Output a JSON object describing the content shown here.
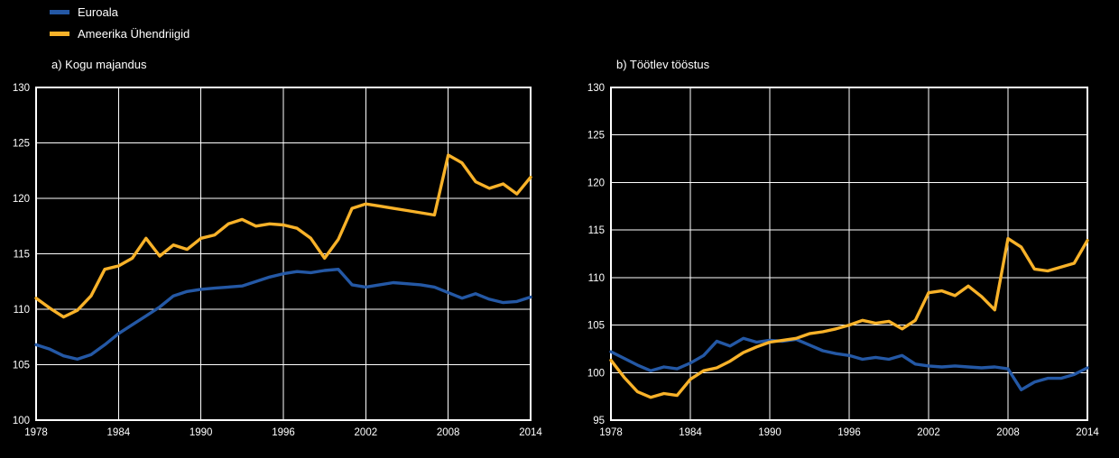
{
  "page": {
    "background": "#000000",
    "text_color": "#ffffff"
  },
  "legend": {
    "items": [
      {
        "label": "Euroala",
        "color": "#2458A5"
      },
      {
        "label": "Ameerika Ühendriigid",
        "color": "#F8B229"
      }
    ]
  },
  "chart_data": [
    {
      "type": "line",
      "title": "a) Kogu majandus",
      "xlabel": "",
      "ylabel": "",
      "grid": true,
      "legend_position": "top-left-above-figure",
      "ylim": [
        100,
        130
      ],
      "ytick_step": 5,
      "xticks": [
        1978,
        1984,
        1990,
        1996,
        2002,
        2008,
        2014
      ],
      "x": [
        1978,
        1979,
        1980,
        1981,
        1982,
        1983,
        1984,
        1985,
        1986,
        1987,
        1988,
        1989,
        1990,
        1991,
        1992,
        1993,
        1994,
        1995,
        1996,
        1997,
        1998,
        1999,
        2000,
        2001,
        2002,
        2003,
        2004,
        2005,
        2006,
        2007,
        2008,
        2009,
        2010,
        2011,
        2012,
        2013,
        2014
      ],
      "series": [
        {
          "name": "Euroala",
          "color": "#2458A5",
          "values": [
            106.8,
            106.4,
            105.8,
            105.5,
            105.9,
            106.8,
            107.8,
            108.6,
            109.4,
            110.2,
            111.2,
            111.6,
            111.8,
            111.9,
            112.0,
            112.1,
            112.5,
            112.9,
            113.2,
            113.4,
            113.3,
            113.5,
            113.6,
            112.2,
            112.0,
            112.2,
            112.4,
            112.3,
            112.2,
            112.0,
            111.5,
            111.0,
            111.4,
            110.9,
            110.6,
            110.7,
            111.1
          ]
        },
        {
          "name": "Ameerika Ühendriigid",
          "color": "#F8B229",
          "values": [
            111.0,
            110.1,
            109.3,
            109.9,
            111.2,
            113.6,
            113.9,
            114.6,
            116.4,
            114.8,
            115.8,
            115.4,
            116.4,
            116.7,
            117.7,
            118.1,
            117.5,
            117.7,
            117.6,
            117.3,
            116.4,
            114.6,
            116.3,
            119.1,
            119.5,
            119.3,
            119.1,
            118.9,
            118.7,
            118.5,
            123.9,
            123.2,
            121.5,
            120.9,
            121.3,
            120.4,
            121.9
          ]
        }
      ]
    },
    {
      "type": "line",
      "title": "b) Töötlev tööstus",
      "xlabel": "",
      "ylabel": "",
      "grid": true,
      "legend_position": "top-left-above-figure",
      "ylim": [
        95,
        130
      ],
      "ytick_step": 5,
      "xticks": [
        1978,
        1984,
        1990,
        1996,
        2002,
        2008,
        2014
      ],
      "x": [
        1978,
        1979,
        1980,
        1981,
        1982,
        1983,
        1984,
        1985,
        1986,
        1987,
        1988,
        1989,
        1990,
        1991,
        1992,
        1993,
        1994,
        1995,
        1996,
        1997,
        1998,
        1999,
        2000,
        2001,
        2002,
        2003,
        2004,
        2005,
        2006,
        2007,
        2008,
        2009,
        2010,
        2011,
        2012,
        2013,
        2014
      ],
      "series": [
        {
          "name": "Euroala",
          "color": "#2458A5",
          "values": [
            102.2,
            101.5,
            100.8,
            100.2,
            100.6,
            100.4,
            101.0,
            101.8,
            103.3,
            102.8,
            103.6,
            103.2,
            103.4,
            103.3,
            103.5,
            102.9,
            102.3,
            102.0,
            101.8,
            101.4,
            101.6,
            101.4,
            101.8,
            100.9,
            100.7,
            100.6,
            100.7,
            100.6,
            100.5,
            100.6,
            100.4,
            98.2,
            99.0,
            99.4,
            99.4,
            99.8,
            100.5
          ]
        },
        {
          "name": "Ameerika Ühendriigid",
          "color": "#F8B229",
          "values": [
            101.3,
            99.5,
            98.0,
            97.4,
            97.8,
            97.6,
            99.3,
            100.2,
            100.5,
            101.2,
            102.1,
            102.7,
            103.2,
            103.4,
            103.6,
            104.1,
            104.3,
            104.6,
            105.0,
            105.5,
            105.2,
            105.4,
            104.6,
            105.5,
            108.4,
            108.6,
            108.1,
            109.1,
            108.0,
            106.6,
            114.1,
            113.2,
            110.9,
            110.7,
            111.1,
            111.5,
            113.9
          ]
        }
      ]
    }
  ]
}
